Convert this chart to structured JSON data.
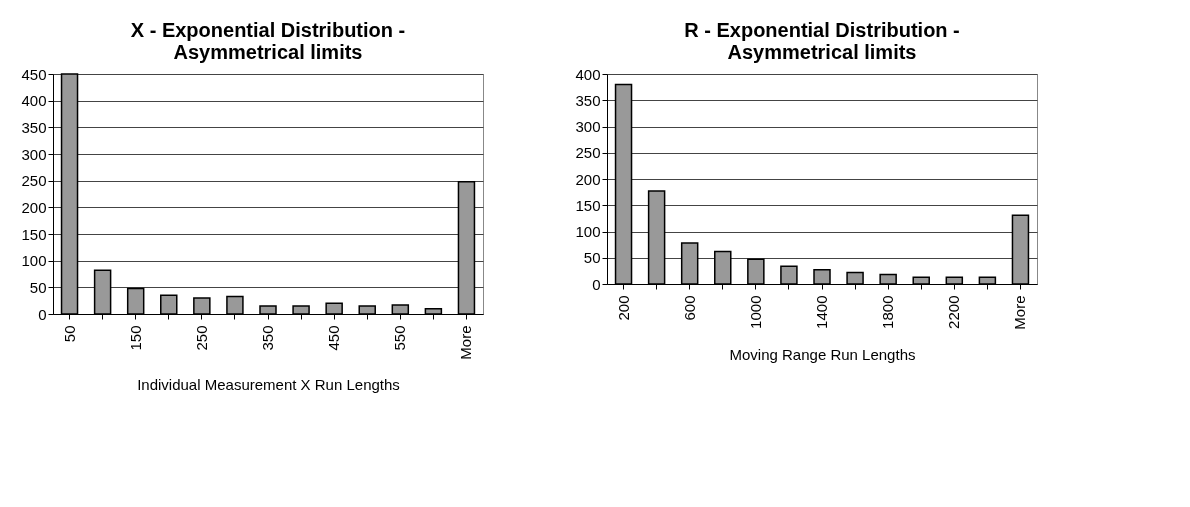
{
  "chart_data": [
    {
      "type": "bar",
      "title": "X - Exponential Distribution - Asymmetrical limits",
      "xlabel": "Individual Measurement X Run Lengths",
      "categories": [
        "50",
        null,
        "150",
        null,
        "250",
        null,
        "350",
        null,
        "450",
        null,
        "550",
        null,
        "More"
      ],
      "values": [
        450,
        82,
        48,
        35,
        30,
        33,
        15,
        15,
        20,
        15,
        17,
        10,
        248
      ],
      "color": "#999999",
      "ylim": [
        0,
        450
      ],
      "yticks": [
        0,
        50,
        100,
        150,
        200,
        250,
        300,
        350,
        400,
        450
      ],
      "grid": "y"
    },
    {
      "type": "bar",
      "title": "R - Exponential Distribution - Asymmetrical limits",
      "xlabel": "Moving Range Run Lengths",
      "categories": [
        "200",
        null,
        "600",
        null,
        "1000",
        null,
        "1400",
        null,
        "1800",
        null,
        "2200",
        null,
        "More"
      ],
      "values": [
        380,
        177,
        78,
        62,
        47,
        34,
        27,
        22,
        18,
        13,
        13,
        13,
        131
      ],
      "color": "#999999",
      "ylim": [
        0,
        400
      ],
      "yticks": [
        0,
        50,
        100,
        150,
        200,
        250,
        300,
        350,
        400
      ],
      "grid": "y"
    }
  ]
}
